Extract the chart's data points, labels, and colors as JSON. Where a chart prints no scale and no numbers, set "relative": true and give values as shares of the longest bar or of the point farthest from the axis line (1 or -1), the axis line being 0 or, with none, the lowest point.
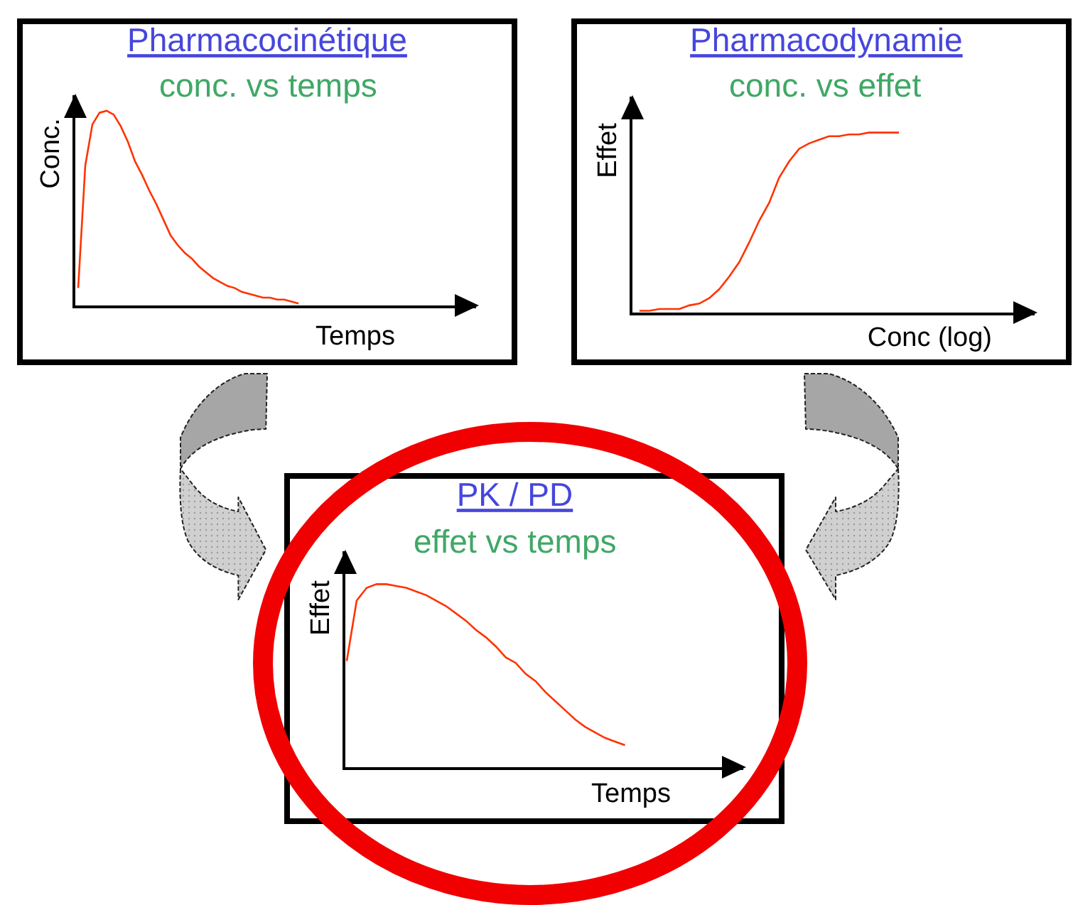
{
  "chart_data": [
    {
      "type": "line",
      "title": "Pharmacocinétique",
      "subtitle": "conc. vs temps",
      "xlabel": "Temps",
      "ylabel": "Conc.",
      "relative": true,
      "categories": [
        null,
        null,
        null,
        null,
        null,
        null,
        null,
        null,
        null,
        null,
        null,
        null,
        null,
        null,
        null,
        null,
        null,
        null,
        null,
        null,
        null,
        null,
        null,
        null,
        null,
        null,
        null,
        null,
        null,
        null,
        null,
        null
      ],
      "color": "#ff3300",
      "values": [
        0.09,
        0.72,
        0.93,
        0.99,
        1.0,
        0.98,
        0.92,
        0.84,
        0.74,
        0.67,
        0.59,
        0.52,
        0.44,
        0.36,
        0.31,
        0.27,
        0.24,
        0.2,
        0.17,
        0.14,
        0.12,
        0.1,
        0.09,
        0.07,
        0.06,
        0.05,
        0.04,
        0.04,
        0.03,
        0.03,
        0.02,
        0.01
      ]
    },
    {
      "type": "line",
      "title": "Pharmacodynamie",
      "subtitle": "conc. vs effet",
      "xlabel": "Conc (log)",
      "ylabel": "Effet",
      "relative": true,
      "categories": [
        null,
        null,
        null,
        null,
        null,
        null,
        null,
        null,
        null,
        null,
        null,
        null,
        null,
        null,
        null,
        null,
        null,
        null,
        null,
        null,
        null,
        null,
        null,
        null,
        null,
        null,
        null
      ],
      "color": "#ff3300",
      "values": [
        0.01,
        0.01,
        0.02,
        0.02,
        0.02,
        0.04,
        0.05,
        0.08,
        0.13,
        0.2,
        0.28,
        0.39,
        0.51,
        0.61,
        0.75,
        0.84,
        0.91,
        0.94,
        0.96,
        0.98,
        0.98,
        0.99,
        0.99,
        1.0,
        1.0,
        1.0,
        1.0
      ]
    },
    {
      "type": "line",
      "title": "PK / PD",
      "subtitle": "effet vs temps",
      "xlabel": "Temps",
      "ylabel": "Effet",
      "relative": true,
      "categories": [
        null,
        null,
        null,
        null,
        null,
        null,
        null,
        null,
        null,
        null,
        null,
        null,
        null,
        null,
        null,
        null,
        null,
        null,
        null,
        null,
        null,
        null,
        null,
        null,
        null,
        null,
        null,
        null,
        null
      ],
      "color": "#ff3300",
      "values": [
        0.58,
        0.91,
        0.98,
        1.0,
        1.0,
        0.99,
        0.98,
        0.96,
        0.94,
        0.91,
        0.88,
        0.84,
        0.8,
        0.75,
        0.71,
        0.66,
        0.6,
        0.57,
        0.51,
        0.47,
        0.41,
        0.36,
        0.31,
        0.26,
        0.22,
        0.19,
        0.16,
        0.14,
        0.12
      ]
    }
  ]
}
